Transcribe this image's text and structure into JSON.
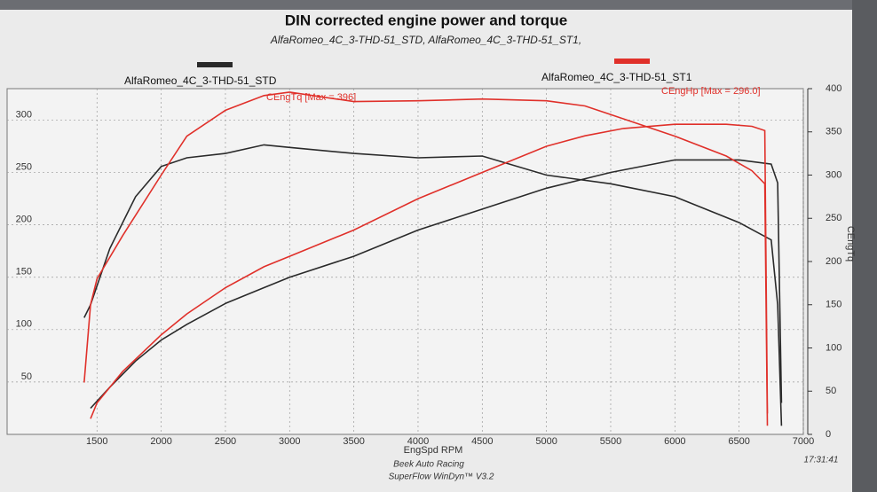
{
  "chart_data": {
    "type": "line",
    "title": "DIN corrected engine power and torque",
    "subtitle": "AlfaRomeo_4C_3-THD-51_STD, AlfaRomeo_4C_3-THD-51_ST1,",
    "xlabel": "EngSpd RPM",
    "y2label": "CEngTq",
    "annotations": [
      "CEngTq [Max = 396]",
      "CEngHp [Max = 296.0]"
    ],
    "footer": [
      "Beek Auto Racing",
      "SuperFlow WinDyn™ V3.2",
      "17:31:41"
    ],
    "grid": true,
    "xlim": [
      800,
      7000
    ],
    "xticks": [
      1500,
      2000,
      2500,
      3000,
      3500,
      4000,
      4500,
      5000,
      5500,
      6000,
      6500,
      7000
    ],
    "ylim": [
      0,
      330
    ],
    "yticks": [
      50,
      100,
      150,
      200,
      250,
      300
    ],
    "y2lim": [
      0,
      400
    ],
    "y2ticks": [
      0,
      50,
      100,
      150,
      200,
      250,
      300,
      350,
      400
    ],
    "series": [
      {
        "name": "AlfaRomeo_4C_3-THD-51_STD",
        "color": "#2a2a2a",
        "axis": "y2",
        "x": [
          1400,
          1450,
          1600,
          1800,
          2000,
          2200,
          2500,
          2800,
          3000,
          3500,
          4000,
          4500,
          5000,
          5500,
          6000,
          6500,
          6750,
          6800,
          6830
        ],
        "values": [
          135,
          150,
          215,
          275,
          310,
          320,
          325,
          335,
          332,
          325,
          320,
          322,
          300,
          290,
          275,
          245,
          225,
          150,
          10
        ],
        "power": [
          null,
          25,
          45,
          70,
          90,
          105,
          125,
          140,
          150,
          170,
          195,
          215,
          235,
          250,
          262,
          262,
          258,
          240,
          30
        ]
      },
      {
        "name": "AlfaRomeo_4C_3-THD-51_ST1",
        "color": "#e0302a",
        "axis": "y2",
        "x": [
          1400,
          1450,
          1500,
          1700,
          2000,
          2200,
          2500,
          2800,
          3000,
          3500,
          4000,
          4500,
          5000,
          5300,
          5600,
          6000,
          6400,
          6600,
          6700,
          6720
        ],
        "values": [
          60,
          150,
          180,
          230,
          300,
          345,
          375,
          392,
          396,
          385,
          386,
          388,
          386,
          380,
          365,
          345,
          322,
          305,
          290,
          10
        ],
        "power": [
          null,
          15,
          30,
          60,
          95,
          115,
          140,
          160,
          170,
          195,
          225,
          250,
          275,
          285,
          292,
          296,
          296,
          294,
          290,
          20
        ]
      }
    ]
  }
}
